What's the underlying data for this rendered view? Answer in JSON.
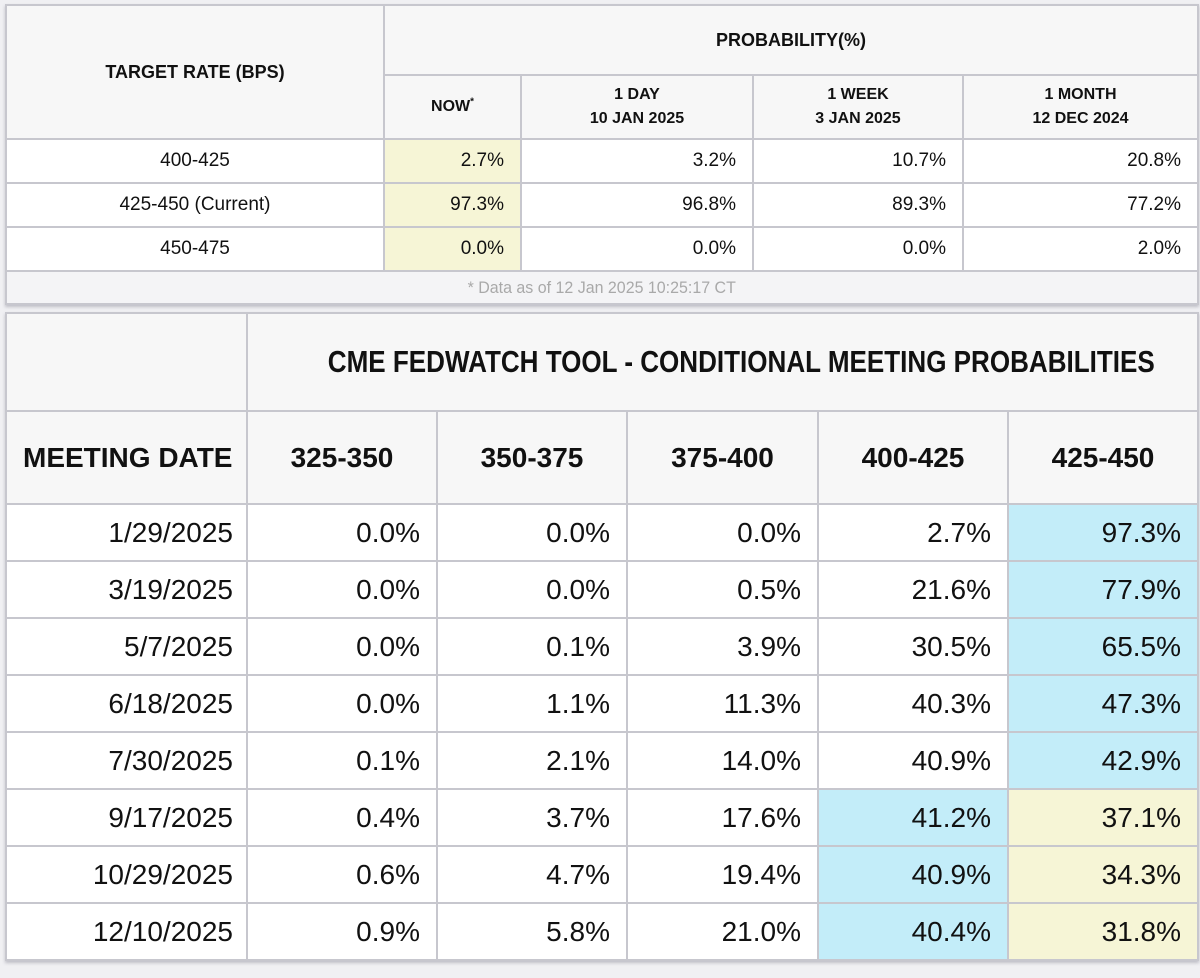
{
  "colors": {
    "highlight_yellow": "#f6f5d6",
    "highlight_cyan": "#c3edf9",
    "header_bg": "#f7f7f7",
    "border": "#c7c7ce",
    "footnote_text": "#a9a9a9"
  },
  "target_rate_table": {
    "corner_header": "TARGET RATE (BPS)",
    "group_header": "PROBABILITY(%)",
    "columns": [
      {
        "line1": "NOW",
        "asterisk": "*",
        "line2": ""
      },
      {
        "line1": "1 DAY",
        "line2": "10 JAN 2025"
      },
      {
        "line1": "1 WEEK",
        "line2": "3 JAN 2025"
      },
      {
        "line1": "1 MONTH",
        "line2": "12 DEC 2024"
      }
    ],
    "rows": [
      {
        "label": "400-425",
        "values": [
          "2.7%",
          "3.2%",
          "10.7%",
          "20.8%"
        ]
      },
      {
        "label": "425-450 (Current)",
        "values": [
          "97.3%",
          "96.8%",
          "89.3%",
          "77.2%"
        ]
      },
      {
        "label": "450-475",
        "values": [
          "0.0%",
          "0.0%",
          "0.0%",
          "2.0%"
        ]
      }
    ],
    "footnote": "* Data as of 12 Jan 2025 10:25:17 CT"
  },
  "meeting_table": {
    "title": "CME FEDWATCH TOOL - CONDITIONAL MEETING PROBABILITIES",
    "date_header": "MEETING DATE",
    "rate_headers": [
      "325-350",
      "350-375",
      "375-400",
      "400-425",
      "425-450"
    ],
    "rows": [
      {
        "date": "1/29/2025",
        "values": [
          "0.0%",
          "0.0%",
          "0.0%",
          "2.7%",
          "97.3%"
        ],
        "highlights": [
          "",
          "",
          "",
          "",
          "cyan"
        ]
      },
      {
        "date": "3/19/2025",
        "values": [
          "0.0%",
          "0.0%",
          "0.5%",
          "21.6%",
          "77.9%"
        ],
        "highlights": [
          "",
          "",
          "",
          "",
          "cyan"
        ]
      },
      {
        "date": "5/7/2025",
        "values": [
          "0.0%",
          "0.1%",
          "3.9%",
          "30.5%",
          "65.5%"
        ],
        "highlights": [
          "",
          "",
          "",
          "",
          "cyan"
        ]
      },
      {
        "date": "6/18/2025",
        "values": [
          "0.0%",
          "1.1%",
          "11.3%",
          "40.3%",
          "47.3%"
        ],
        "highlights": [
          "",
          "",
          "",
          "",
          "cyan"
        ]
      },
      {
        "date": "7/30/2025",
        "values": [
          "0.1%",
          "2.1%",
          "14.0%",
          "40.9%",
          "42.9%"
        ],
        "highlights": [
          "",
          "",
          "",
          "",
          "cyan"
        ]
      },
      {
        "date": "9/17/2025",
        "values": [
          "0.4%",
          "3.7%",
          "17.6%",
          "41.2%",
          "37.1%"
        ],
        "highlights": [
          "",
          "",
          "",
          "cyan",
          "yellow"
        ]
      },
      {
        "date": "10/29/2025",
        "values": [
          "0.6%",
          "4.7%",
          "19.4%",
          "40.9%",
          "34.3%"
        ],
        "highlights": [
          "",
          "",
          "",
          "cyan",
          "yellow"
        ]
      },
      {
        "date": "12/10/2025",
        "values": [
          "0.9%",
          "5.8%",
          "21.0%",
          "40.4%",
          "31.8%"
        ],
        "highlights": [
          "",
          "",
          "",
          "cyan",
          "yellow"
        ]
      }
    ]
  },
  "chart_data": [
    {
      "type": "table",
      "title": "PROBABILITY(%)",
      "row_label": "TARGET RATE (BPS)",
      "columns": [
        "NOW *",
        "1 DAY 10 JAN 2025",
        "1 WEEK 3 JAN 2025",
        "1 MONTH 12 DEC 2024"
      ],
      "rows": [
        {
          "target_rate": "400-425",
          "values": [
            2.7,
            3.2,
            10.7,
            20.8
          ]
        },
        {
          "target_rate": "425-450 (Current)",
          "values": [
            97.3,
            96.8,
            89.3,
            77.2
          ]
        },
        {
          "target_rate": "450-475",
          "values": [
            0.0,
            0.0,
            0.0,
            2.0
          ]
        }
      ],
      "annotation": "* Data as of 12 Jan 2025 10:25:17 CT"
    },
    {
      "type": "table",
      "title": "CME FEDWATCH TOOL - CONDITIONAL MEETING PROBABILITIES",
      "columns": [
        "MEETING DATE",
        "325-350",
        "350-375",
        "375-400",
        "400-425",
        "425-450"
      ],
      "rows": [
        {
          "meeting_date": "1/29/2025",
          "values": [
            0.0,
            0.0,
            0.0,
            2.7,
            97.3
          ]
        },
        {
          "meeting_date": "3/19/2025",
          "values": [
            0.0,
            0.0,
            0.5,
            21.6,
            77.9
          ]
        },
        {
          "meeting_date": "5/7/2025",
          "values": [
            0.0,
            0.1,
            3.9,
            30.5,
            65.5
          ]
        },
        {
          "meeting_date": "6/18/2025",
          "values": [
            0.0,
            1.1,
            11.3,
            40.3,
            47.3
          ]
        },
        {
          "meeting_date": "7/30/2025",
          "values": [
            0.1,
            2.1,
            14.0,
            40.9,
            42.9
          ]
        },
        {
          "meeting_date": "9/17/2025",
          "values": [
            0.4,
            3.7,
            17.6,
            41.2,
            37.1
          ]
        },
        {
          "meeting_date": "10/29/2025",
          "values": [
            0.6,
            4.7,
            19.4,
            40.9,
            34.3
          ]
        },
        {
          "meeting_date": "12/10/2025",
          "values": [
            0.9,
            5.8,
            21.0,
            40.4,
            31.8
          ]
        }
      ]
    }
  ]
}
